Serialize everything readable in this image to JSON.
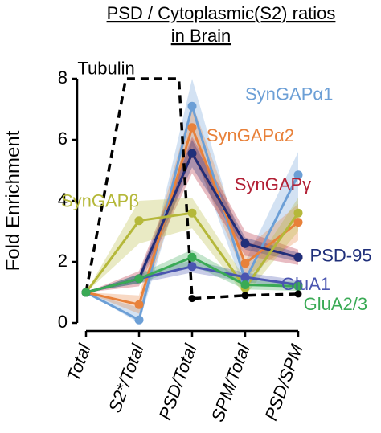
{
  "chart_data": {
    "type": "line",
    "title": [
      "PSD / Cytoplasmic(S2) ratios",
      "in Brain"
    ],
    "ylabel": "Fold Enrichment",
    "xlabel": "",
    "categories": [
      "Total",
      "S2*/Total",
      "PSD/Total",
      "SPM/Total",
      "PSD/SPM"
    ],
    "ylim": [
      0,
      8
    ],
    "yticks": [
      0,
      2,
      4,
      6,
      8
    ],
    "grid": false,
    "legend": "inline labels",
    "series": [
      {
        "name": "SynGAPα1",
        "color": "#6c9fd6",
        "values": [
          1.0,
          0.1,
          7.1,
          1.4,
          4.85
        ],
        "lower": [
          1.0,
          0.0,
          5.8,
          1.0,
          3.6
        ],
        "upper": [
          1.0,
          0.5,
          8.0,
          2.0,
          5.6
        ]
      },
      {
        "name": "SynGAPα2",
        "color": "#e8813a",
        "values": [
          1.0,
          0.6,
          6.4,
          1.95,
          3.3
        ],
        "lower": [
          1.0,
          0.3,
          5.6,
          1.5,
          2.7
        ],
        "upper": [
          1.0,
          0.9,
          7.2,
          2.4,
          3.9
        ]
      },
      {
        "name": "SynGAPγ",
        "color": "#b22035",
        "values": [
          1.0,
          1.45,
          5.55,
          2.6,
          2.15
        ],
        "lower": [
          1.0,
          1.2,
          4.9,
          2.2,
          1.9
        ],
        "upper": [
          1.0,
          1.7,
          6.1,
          3.0,
          2.4
        ]
      },
      {
        "name": "PSD-95",
        "color": "#1f2f7a",
        "values": [
          1.0,
          1.45,
          5.55,
          2.6,
          2.15
        ],
        "lower": [
          1.0,
          1.3,
          5.1,
          2.4,
          2.0
        ],
        "upper": [
          1.0,
          1.6,
          6.0,
          2.8,
          2.3
        ]
      },
      {
        "name": "SynGAPβ",
        "color": "#b5b83a",
        "values": [
          1.0,
          3.35,
          3.6,
          1.15,
          3.6
        ],
        "lower": [
          1.0,
          2.6,
          3.1,
          0.9,
          3.0
        ],
        "upper": [
          1.0,
          4.0,
          4.1,
          1.45,
          4.1
        ]
      },
      {
        "name": "GluA1",
        "color": "#4a55b0",
        "values": [
          1.0,
          1.45,
          1.85,
          1.5,
          1.25
        ],
        "lower": [
          1.0,
          1.3,
          1.65,
          1.35,
          1.1
        ],
        "upper": [
          1.0,
          1.6,
          2.05,
          1.65,
          1.4
        ]
      },
      {
        "name": "GluA2/3",
        "color": "#3aaa55",
        "values": [
          1.0,
          1.45,
          2.15,
          1.25,
          1.2
        ],
        "lower": [
          1.0,
          1.3,
          1.9,
          1.1,
          1.05
        ],
        "upper": [
          1.0,
          1.6,
          2.4,
          1.4,
          1.35
        ]
      },
      {
        "name": "Tubulin",
        "color": "#000000",
        "dashed": true,
        "x": [
          0,
          0.75,
          1.75,
          2,
          3,
          4
        ],
        "values": [
          1.0,
          8.0,
          8.0,
          0.8,
          0.9,
          0.95
        ]
      }
    ]
  }
}
